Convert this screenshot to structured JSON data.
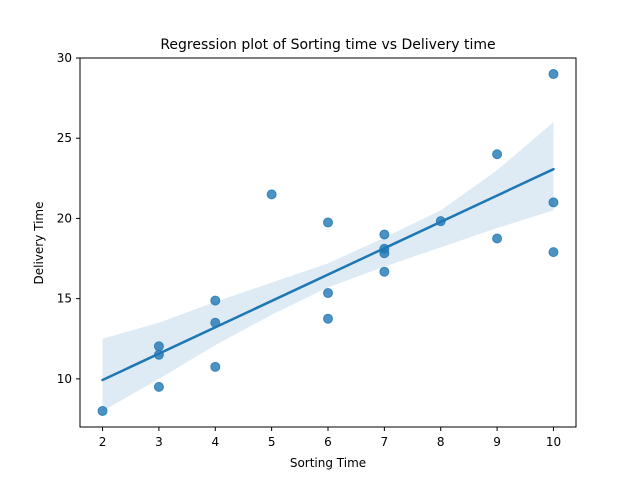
{
  "chart_data": {
    "type": "scatter",
    "title": "Regression plot of Sorting time vs Delivery time",
    "xlabel": "Sorting Time",
    "ylabel": "Delivery Time",
    "xlim": [
      1.6,
      10.4
    ],
    "ylim": [
      7.0,
      30.0
    ],
    "x_ticks": [
      2,
      3,
      4,
      5,
      6,
      7,
      8,
      9,
      10
    ],
    "y_ticks": [
      10,
      15,
      20,
      25,
      30
    ],
    "grid": false,
    "colors": {
      "points": "#1f77b4",
      "line": "#1f77b4",
      "band": "#1f77b4"
    },
    "points": [
      {
        "x": 10,
        "y": 21.0
      },
      {
        "x": 4,
        "y": 13.5
      },
      {
        "x": 6,
        "y": 19.75
      },
      {
        "x": 9,
        "y": 24.0
      },
      {
        "x": 10,
        "y": 29.0
      },
      {
        "x": 6,
        "y": 15.35
      },
      {
        "x": 7,
        "y": 19.0
      },
      {
        "x": 3,
        "y": 9.5
      },
      {
        "x": 10,
        "y": 17.9
      },
      {
        "x": 9,
        "y": 18.75
      },
      {
        "x": 8,
        "y": 19.83
      },
      {
        "x": 4,
        "y": 10.75
      },
      {
        "x": 7,
        "y": 16.68
      },
      {
        "x": 3,
        "y": 11.5
      },
      {
        "x": 3,
        "y": 12.03
      },
      {
        "x": 4,
        "y": 14.88
      },
      {
        "x": 6,
        "y": 13.75
      },
      {
        "x": 7,
        "y": 18.11
      },
      {
        "x": 2,
        "y": 8.0
      },
      {
        "x": 7,
        "y": 17.83
      },
      {
        "x": 5,
        "y": 21.5
      }
    ],
    "regression": {
      "x": [
        2,
        10
      ],
      "y": [
        9.93,
        23.07
      ]
    },
    "confidence_band": {
      "x": [
        2,
        3,
        4,
        5,
        6,
        7,
        8,
        9,
        10
      ],
      "lower": [
        8.0,
        10.0,
        12.1,
        14.0,
        15.7,
        17.0,
        18.2,
        19.4,
        20.5
      ],
      "upper": [
        12.5,
        13.5,
        14.8,
        16.0,
        17.2,
        18.8,
        20.5,
        23.0,
        26.0
      ]
    }
  }
}
